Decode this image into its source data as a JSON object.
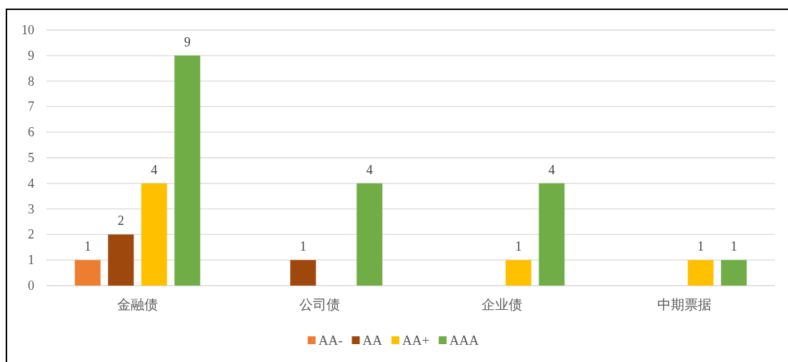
{
  "chart_data": {
    "type": "bar",
    "categories": [
      "金融债",
      "公司债",
      "企业债",
      "中期票据"
    ],
    "series": [
      {
        "name": "AA-",
        "color": "#ed7d31",
        "values": [
          1,
          null,
          null,
          null
        ]
      },
      {
        "name": "AA",
        "color": "#9e480e",
        "values": [
          2,
          1,
          null,
          null
        ]
      },
      {
        "name": "AA+",
        "color": "#ffc000",
        "values": [
          4,
          null,
          1,
          1
        ]
      },
      {
        "name": "AAA",
        "color": "#70ad47",
        "values": [
          9,
          4,
          4,
          1
        ]
      }
    ],
    "ylim": [
      0,
      10
    ],
    "yticks": [
      0,
      1,
      2,
      3,
      4,
      5,
      6,
      7,
      8,
      9,
      10
    ],
    "grid": "y",
    "legend": "bottom",
    "data_labels": true
  }
}
